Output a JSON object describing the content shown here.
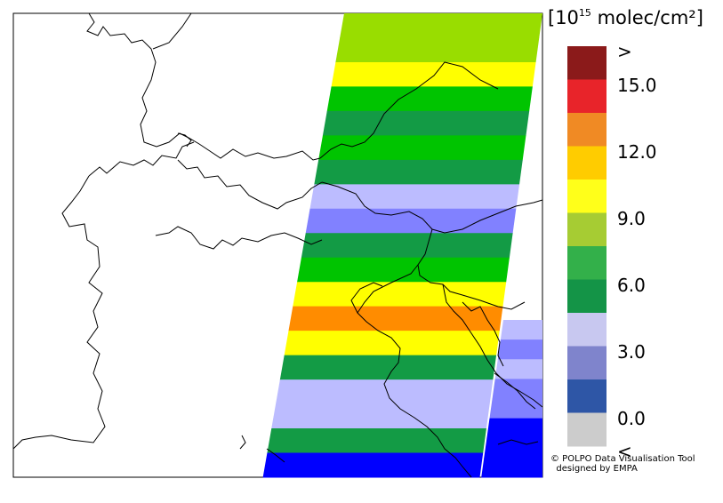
{
  "legend": {
    "unit_prefix": "[10",
    "unit_exponent": "15",
    "unit_suffix": " molec/cm²]",
    "swatches": [
      {
        "color": "#8b1a1a"
      },
      {
        "color": "#e8242a"
      },
      {
        "color": "#f08a24"
      },
      {
        "color": "#ffcc00"
      },
      {
        "color": "#ffff1a"
      },
      {
        "color": "#a6cc33"
      },
      {
        "color": "#33b04a"
      },
      {
        "color": "#149447"
      },
      {
        "color": "#c8c8f0"
      },
      {
        "color": "#7f84cc"
      },
      {
        "color": "#2e56a6"
      },
      {
        "color": "#cccccc"
      }
    ],
    "labels": [
      {
        "text": ">",
        "slot": 0
      },
      {
        "text": "15.0",
        "slot": 1
      },
      {
        "text": "12.0",
        "slot": 3
      },
      {
        "text": "9.0",
        "slot": 5
      },
      {
        "text": "6.0",
        "slot": 7
      },
      {
        "text": "3.0",
        "slot": 9
      },
      {
        "text": "0.0",
        "slot": 11
      },
      {
        "text": "<",
        "slot": 12
      }
    ]
  },
  "swath": {
    "colors": {
      "lightgreen": "#99dd00",
      "yellow": "#ffff00",
      "green": "#00c400",
      "darkgreen": "#139b45",
      "lavender": "#bcbcff",
      "periwinkle": "#8181ff",
      "orange": "#ff8c00",
      "blue": "#0000ff"
    },
    "rows": [
      "lightgreen",
      "lightgreen",
      "yellow",
      "green",
      "darkgreen",
      "green",
      "darkgreen",
      "lavender",
      "periwinkle",
      "darkgreen",
      "green",
      "yellow",
      "orange",
      "yellow",
      "darkgreen",
      "lavender",
      "lavender",
      "darkgreen",
      "blue"
    ],
    "side_rows": [
      "lavender",
      "periwinkle",
      "lavender",
      "periwinkle",
      "periwinkle",
      "blue",
      "blue",
      "blue"
    ]
  },
  "credit": {
    "line1": "© POLPO Data Visualisation Tool",
    "line2": "  designed by EMPA"
  }
}
